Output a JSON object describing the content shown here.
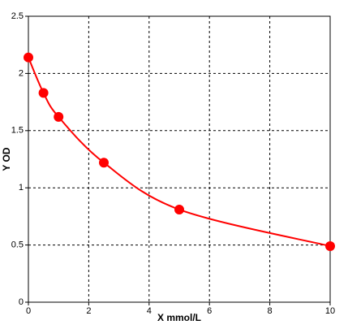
{
  "chart_data": {
    "type": "line",
    "x_label": "X mmol/L",
    "y_label": "Y OD",
    "x": [
      0,
      0.5,
      1,
      2.5,
      5,
      10
    ],
    "series": [
      {
        "color": "#ff0000",
        "values": [
          2.14,
          1.83,
          1.62,
          1.22,
          0.81,
          0.49
        ]
      }
    ],
    "xlim": [
      0,
      10
    ],
    "ylim": [
      0,
      2.5
    ],
    "xticks": [
      0,
      2,
      4,
      6,
      8,
      10
    ],
    "yticks": [
      0,
      0.5,
      1,
      1.5,
      2,
      2.5
    ],
    "grid": true
  }
}
